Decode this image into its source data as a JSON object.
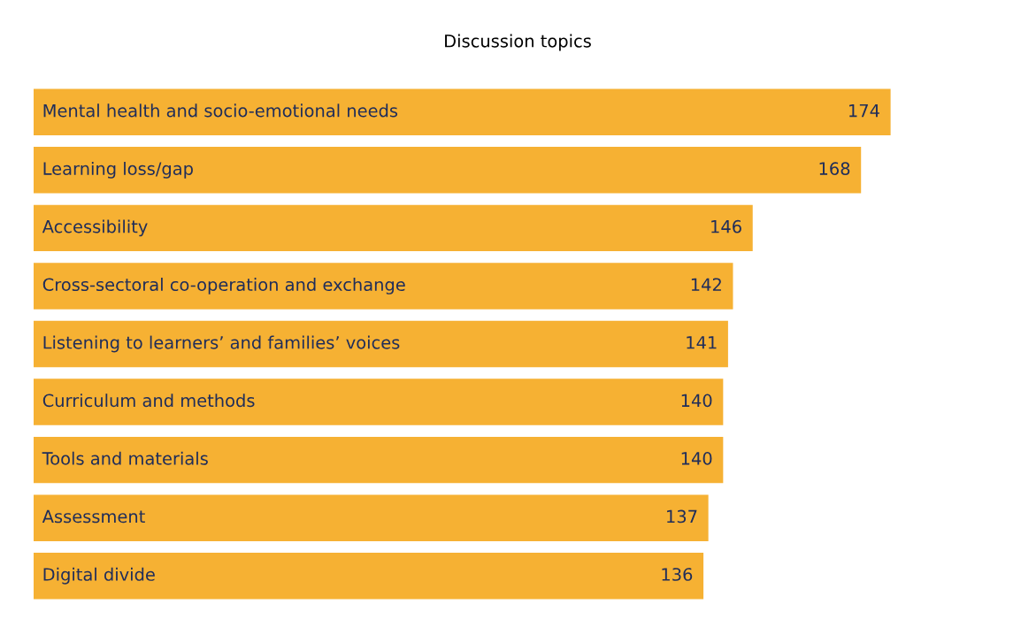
{
  "chart_data": {
    "type": "bar",
    "orientation": "horizontal",
    "title": "Discussion topics",
    "categories": [
      "Mental health and socio-emotional needs",
      "Learning loss/gap",
      "Accessibility",
      "Cross-sectoral co-operation and exchange",
      "Listening to learners’ and families’ voices",
      "Curriculum and methods",
      "Tools and materials",
      "Assessment",
      "Digital divide"
    ],
    "values": [
      174,
      168,
      146,
      142,
      141,
      140,
      140,
      137,
      136
    ],
    "color": "#f6b133",
    "data_labels": true
  }
}
